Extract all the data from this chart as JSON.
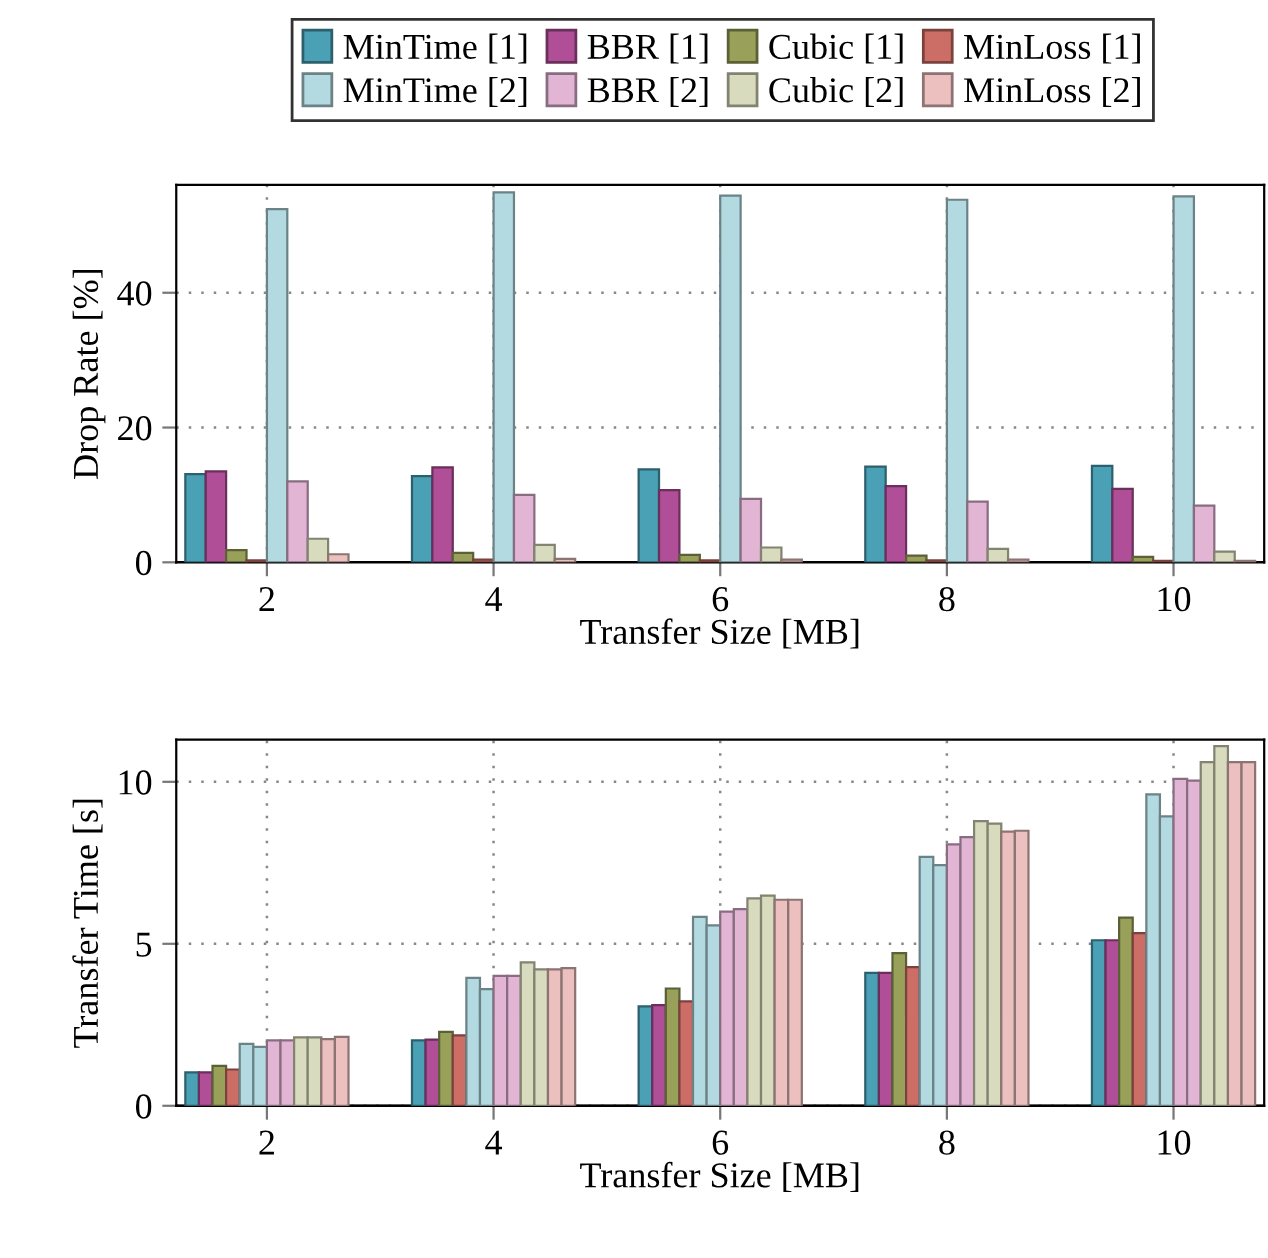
{
  "chart_data": [
    {
      "type": "bar",
      "xlabel": "Transfer Size [MB]",
      "ylabel": "Drop Rate [%]",
      "x": [
        2,
        4,
        6,
        8,
        10
      ],
      "xlim": [
        1.2,
        10.8
      ],
      "xticks": [
        2,
        4,
        6,
        8,
        10
      ],
      "ylim": [
        0,
        56
      ],
      "yticks": [
        0,
        20,
        40
      ],
      "grid": true,
      "legend": "top",
      "series": [
        {
          "name": "MinTime [1]",
          "color": "#4aa0b5",
          "values": [
            13.1,
            12.8,
            13.8,
            14.2,
            14.3
          ]
        },
        {
          "name": "BBR [1]",
          "color": "#b04e98",
          "values": [
            13.5,
            14.1,
            10.7,
            11.3,
            10.9
          ]
        },
        {
          "name": "Cubic [1]",
          "color": "#99a05a",
          "values": [
            1.8,
            1.4,
            1.1,
            1.0,
            0.8
          ]
        },
        {
          "name": "MinLoss [1]",
          "color": "#cc6e66",
          "values": [
            0.3,
            0.4,
            0.3,
            0.3,
            0.2
          ]
        },
        {
          "name": "MinTime [2]",
          "color": "#b3d9e1",
          "values": [
            52.4,
            54.9,
            54.4,
            53.8,
            54.3
          ]
        },
        {
          "name": "BBR [2]",
          "color": "#e2b5d5",
          "values": [
            12.0,
            10.0,
            9.4,
            9.0,
            8.4
          ]
        },
        {
          "name": "Cubic [2]",
          "color": "#d8dbbd",
          "values": [
            3.5,
            2.6,
            2.2,
            2.0,
            1.6
          ]
        },
        {
          "name": "MinLoss [2]",
          "color": "#ebc0be",
          "values": [
            1.2,
            0.5,
            0.4,
            0.4,
            0.2
          ]
        }
      ]
    },
    {
      "type": "bar",
      "xlabel": "Transfer Size [MB]",
      "ylabel": "Transfer Time [s]",
      "x": [
        2,
        4,
        6,
        8,
        10
      ],
      "xlim": [
        1.2,
        10.8
      ],
      "xticks": [
        2,
        4,
        6,
        8,
        10
      ],
      "ylim": [
        0,
        11.3
      ],
      "yticks": [
        0,
        5,
        10
      ],
      "grid": true,
      "series": [
        {
          "name": "MinTime [1]",
          "color": "#4aa0b5",
          "values": [
            1.03,
            2.02,
            3.07,
            4.1,
            5.11
          ]
        },
        {
          "name": "BBR [1]",
          "color": "#b04e98",
          "values": [
            1.03,
            2.04,
            3.11,
            4.1,
            5.11
          ]
        },
        {
          "name": "Cubic [1]",
          "color": "#99a05a",
          "values": [
            1.23,
            2.28,
            3.62,
            4.71,
            5.81
          ]
        },
        {
          "name": "MinLoss [1]",
          "color": "#cc6e66",
          "values": [
            1.12,
            2.17,
            3.22,
            4.28,
            5.33
          ]
        },
        {
          "name": "MinTime [2]",
          "color": "#b3d9e1",
          "values": [
            1.91,
            3.95,
            5.83,
            7.68,
            9.61
          ]
        },
        {
          "name": "MinTime [2]",
          "color": "#b3d9e1",
          "values": [
            1.82,
            3.6,
            5.57,
            7.43,
            8.93
          ]
        },
        {
          "name": "BBR [2]",
          "color": "#e2b5d5",
          "values": [
            2.02,
            4.01,
            5.99,
            8.07,
            10.09
          ]
        },
        {
          "name": "BBR [2]",
          "color": "#e2b5d5",
          "values": [
            2.02,
            4.01,
            6.07,
            8.29,
            10.04
          ]
        },
        {
          "name": "Cubic [2]",
          "color": "#d8dbbd",
          "values": [
            2.11,
            4.43,
            6.4,
            8.79,
            10.61
          ]
        },
        {
          "name": "Cubic [2]",
          "color": "#d8dbbd",
          "values": [
            2.11,
            4.21,
            6.49,
            8.71,
            11.1
          ]
        },
        {
          "name": "MinLoss [2]",
          "color": "#ebc0be",
          "values": [
            2.06,
            4.21,
            6.36,
            8.46,
            10.61
          ]
        },
        {
          "name": "MinLoss [2]",
          "color": "#ebc0be",
          "values": [
            2.13,
            4.25,
            6.36,
            8.49,
            10.61
          ]
        }
      ]
    }
  ]
}
